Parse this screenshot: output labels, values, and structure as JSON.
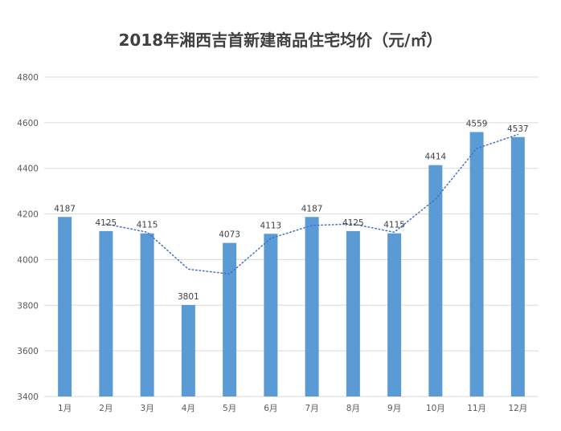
{
  "chart_data": {
    "type": "bar",
    "title": "2018年湘西吉首新建商品住宅均价（元/㎡）",
    "xlabel": "",
    "ylabel": "",
    "categories": [
      "1月",
      "2月",
      "3月",
      "4月",
      "5月",
      "6月",
      "7月",
      "8月",
      "9月",
      "10月",
      "11月",
      "12月"
    ],
    "values": [
      4187,
      4125,
      4115,
      3801,
      4073,
      4113,
      4187,
      4125,
      4115,
      4414,
      4559,
      4537
    ],
    "ylim": [
      3400,
      4800
    ],
    "yticks": [
      3400,
      3600,
      3800,
      4000,
      4200,
      4400,
      4600,
      4800
    ],
    "grid": true,
    "legend": "none",
    "trendline": {
      "style": "dotted",
      "type": "moving-average",
      "values": [
        null,
        4156,
        4120,
        3958,
        3937,
        4093,
        4150,
        4156,
        4120,
        4265,
        4487,
        4548
      ]
    },
    "colors": {
      "bar": "#5b9bd5",
      "trendline": "#4472c4"
    }
  }
}
